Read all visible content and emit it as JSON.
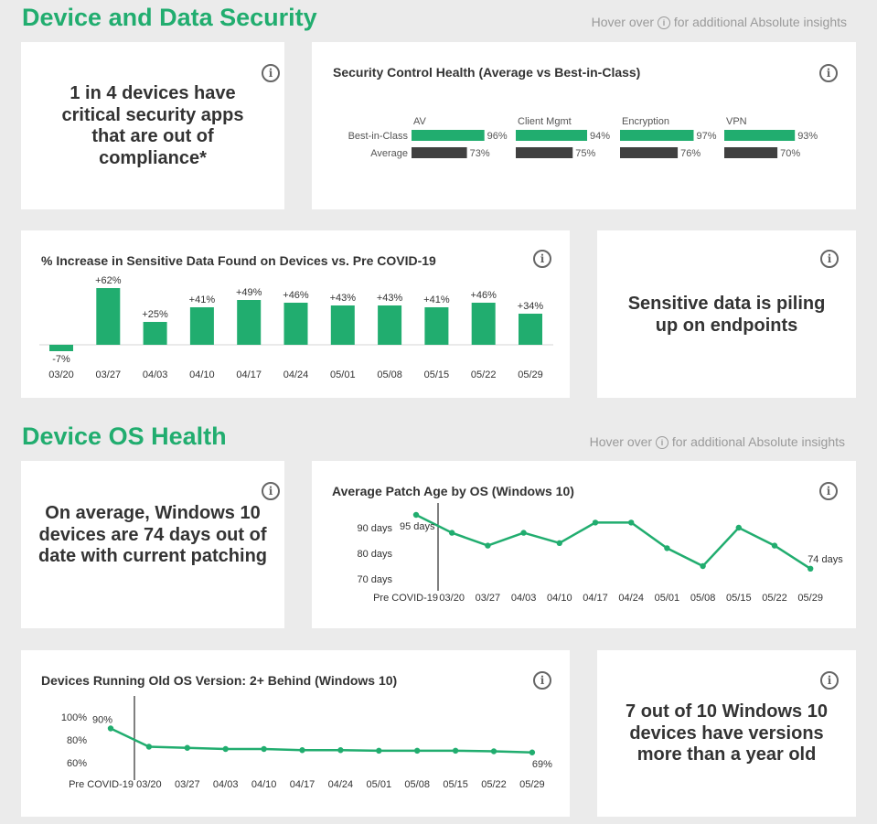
{
  "section1": {
    "title": "Device and Data Security",
    "hover_note_prefix": "Hover over",
    "hover_note_suffix": "for additional Absolute insights"
  },
  "section2": {
    "title": "Device OS Health",
    "hover_note_prefix": "Hover over",
    "hover_note_suffix": "for additional Absolute insights"
  },
  "info_glyph": "i",
  "callouts": {
    "apps": "1 in 4 devices have critical security apps that are out of compliance*",
    "sensitive": "Sensitive data is piling up on endpoints",
    "patch": "On average, Windows 10 devices are 74 days out of date with current patching",
    "versions": "7 out of 10 Windows 10 devices have versions  more than a year old"
  },
  "colors": {
    "accent": "#21ad6f",
    "dark": "#404040"
  },
  "chart_data": [
    {
      "type": "bar",
      "title": "Security Control Health (Average vs Best-in-Class)",
      "row_labels": [
        "Best-in-Class",
        "Average"
      ],
      "groups": [
        {
          "name": "AV",
          "best": 96,
          "average": 73,
          "best_label": "96%",
          "average_label": "73%"
        },
        {
          "name": "Client Mgmt",
          "best": 94,
          "average": 75,
          "best_label": "94%",
          "average_label": "75%"
        },
        {
          "name": "Encryption",
          "best": 97,
          "average": 76,
          "best_label": "97%",
          "average_label": "76%"
        },
        {
          "name": "VPN",
          "best": 93,
          "average": 70,
          "best_label": "93%",
          "average_label": "70%"
        }
      ],
      "xlim": [
        0,
        100
      ]
    },
    {
      "type": "bar",
      "title": "% Increase in Sensitive Data Found on Devices vs. Pre COVID-19",
      "categories": [
        "03/20",
        "03/27",
        "04/03",
        "04/10",
        "04/17",
        "04/24",
        "05/01",
        "05/08",
        "05/15",
        "05/22",
        "05/29"
      ],
      "values": [
        -7,
        62,
        25,
        41,
        49,
        46,
        43,
        43,
        41,
        46,
        34
      ],
      "labels": [
        "-7%",
        "+62%",
        "+25%",
        "+41%",
        "+49%",
        "+46%",
        "+43%",
        "+43%",
        "+41%",
        "+46%",
        "+34%"
      ]
    },
    {
      "type": "line",
      "title": "Average Patch Age by OS (Windows 10)",
      "categories": [
        "Pre COVID-19",
        "03/20",
        "03/27",
        "04/03",
        "04/10",
        "04/17",
        "04/24",
        "05/01",
        "05/08",
        "05/15",
        "05/22",
        "05/29"
      ],
      "values": [
        95,
        88,
        83,
        88,
        84,
        92,
        92,
        82,
        75,
        90,
        83,
        74
      ],
      "y_ticks": [
        {
          "value": 90,
          "label": "90 days"
        },
        {
          "value": 80,
          "label": "80 days"
        },
        {
          "value": 70,
          "label": "70 days"
        }
      ],
      "point_labels": [
        {
          "index": 0,
          "text": "95 days"
        },
        {
          "index": 11,
          "text": "74 days"
        }
      ],
      "ylim": [
        70,
        95
      ]
    },
    {
      "type": "line",
      "title": "Devices Running Old OS Version: 2+ Behind (Windows 10)",
      "categories": [
        "Pre COVID-19",
        "03/20",
        "03/27",
        "04/03",
        "04/10",
        "04/17",
        "04/24",
        "05/01",
        "05/08",
        "05/15",
        "05/22",
        "05/29"
      ],
      "values": [
        90,
        74,
        73,
        72,
        72,
        71,
        71,
        70.5,
        70.5,
        70.5,
        70,
        69
      ],
      "y_ticks": [
        {
          "value": 100,
          "label": "100%"
        },
        {
          "value": 80,
          "label": "80%"
        },
        {
          "value": 60,
          "label": "60%"
        }
      ],
      "point_labels": [
        {
          "index": 0,
          "text": "90%"
        },
        {
          "index": 11,
          "text": "69%"
        }
      ],
      "ylim": [
        60,
        100
      ]
    }
  ]
}
